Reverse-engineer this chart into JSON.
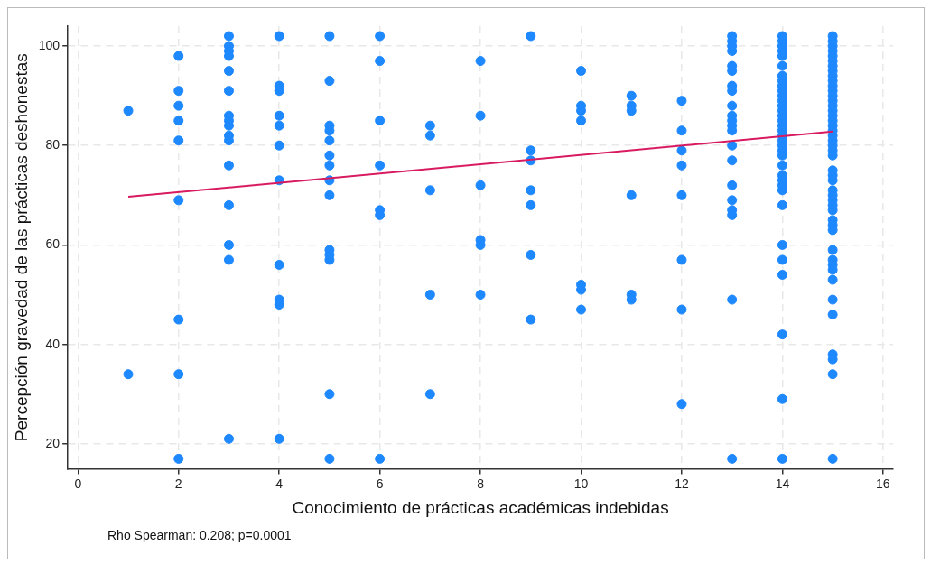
{
  "chart_data": {
    "type": "scatter",
    "xlabel": "Conocimiento de prácticas académicas indebidas",
    "ylabel": "Percepción gravedad de las prácticas deshonestas",
    "xlim": [
      -0.2,
      16.2
    ],
    "xticks": [
      0,
      2,
      4,
      6,
      8,
      10,
      12,
      14,
      16
    ],
    "ylim": [
      15,
      104
    ],
    "yticks": [
      20,
      40,
      60,
      80,
      100
    ],
    "grid": true,
    "series": [
      {
        "color": "#1e88ff",
        "marker": "circle",
        "x": [
          1,
          1,
          2,
          2,
          2,
          2,
          2,
          2,
          2,
          2,
          2,
          3,
          3,
          3,
          3,
          3,
          3,
          3,
          3,
          3,
          3,
          3,
          3,
          3,
          3,
          3,
          3,
          4,
          4,
          4,
          4,
          4,
          4,
          4,
          4,
          4,
          4,
          4,
          5,
          5,
          5,
          5,
          5,
          5,
          5,
          5,
          5,
          5,
          5,
          5,
          5,
          5,
          6,
          6,
          6,
          6,
          6,
          6,
          6,
          7,
          7,
          7,
          7,
          7,
          8,
          8,
          8,
          8,
          8,
          8,
          9,
          9,
          9,
          9,
          9,
          9,
          9,
          10,
          10,
          10,
          10,
          10,
          10,
          10,
          11,
          11,
          11,
          11,
          11,
          11,
          12,
          12,
          12,
          12,
          12,
          12,
          12,
          12,
          13,
          13,
          13,
          13,
          13,
          13,
          13,
          13,
          13,
          13,
          13,
          13,
          13,
          13,
          13,
          13,
          13,
          13,
          13,
          13,
          13,
          14,
          14,
          14,
          14,
          14,
          14,
          14,
          14,
          14,
          14,
          14,
          14,
          14,
          14,
          14,
          14,
          14,
          14,
          14,
          14,
          14,
          14,
          14,
          14,
          14,
          14,
          14,
          14,
          14,
          14,
          14,
          14,
          14,
          14,
          14,
          15,
          15,
          15,
          15,
          15,
          15,
          15,
          15,
          15,
          15,
          15,
          15,
          15,
          15,
          15,
          15,
          15,
          15,
          15,
          15,
          15,
          15,
          15,
          15,
          15,
          15,
          15,
          15,
          15,
          15,
          15,
          15,
          15,
          15,
          15,
          15,
          15,
          15,
          15,
          15,
          15,
          15,
          15,
          15,
          15,
          15,
          15
        ],
        "values": [
          87,
          34,
          98,
          91,
          88,
          85,
          81,
          69,
          45,
          34,
          17,
          102,
          100,
          99,
          98,
          95,
          91,
          86,
          85,
          84,
          82,
          81,
          76,
          68,
          60,
          57,
          21,
          102,
          92,
          91,
          86,
          84,
          80,
          73,
          56,
          49,
          48,
          21,
          102,
          93,
          84,
          83,
          81,
          78,
          76,
          73,
          70,
          59,
          58,
          57,
          30,
          17,
          102,
          97,
          85,
          76,
          67,
          66,
          17,
          84,
          82,
          71,
          50,
          30,
          97,
          86,
          72,
          61,
          60,
          50,
          102,
          79,
          77,
          71,
          68,
          58,
          45,
          95,
          88,
          87,
          85,
          52,
          51,
          47,
          90,
          88,
          87,
          70,
          50,
          49,
          89,
          83,
          79,
          76,
          70,
          57,
          47,
          28,
          102,
          101,
          100,
          99,
          96,
          95,
          92,
          91,
          88,
          86,
          85,
          84,
          83,
          80,
          77,
          72,
          69,
          67,
          66,
          49,
          17,
          102,
          101,
          100,
          99,
          98,
          96,
          94,
          93,
          92,
          91,
          90,
          89,
          88,
          87,
          86,
          85,
          84,
          83,
          82,
          81,
          80,
          79,
          78,
          76,
          74,
          73,
          72,
          71,
          68,
          60,
          57,
          54,
          42,
          29,
          17,
          102,
          101,
          100,
          99,
          98,
          97,
          96,
          95,
          94,
          93,
          92,
          91,
          90,
          89,
          88,
          87,
          86,
          85,
          84,
          83,
          82,
          81,
          80,
          79,
          78,
          75,
          74,
          73,
          71,
          70,
          69,
          68,
          67,
          65,
          64,
          63,
          59,
          57,
          56,
          55,
          53,
          49,
          46,
          38,
          37,
          34,
          17
        ]
      },
      {
        "type": "line",
        "marker": "none",
        "color": "#d81b60",
        "x": [
          1,
          15
        ],
        "values": [
          69.7,
          82.8
        ]
      }
    ],
    "annotations": [
      "Rho Spearman: 0.208; p=0.0001"
    ]
  }
}
